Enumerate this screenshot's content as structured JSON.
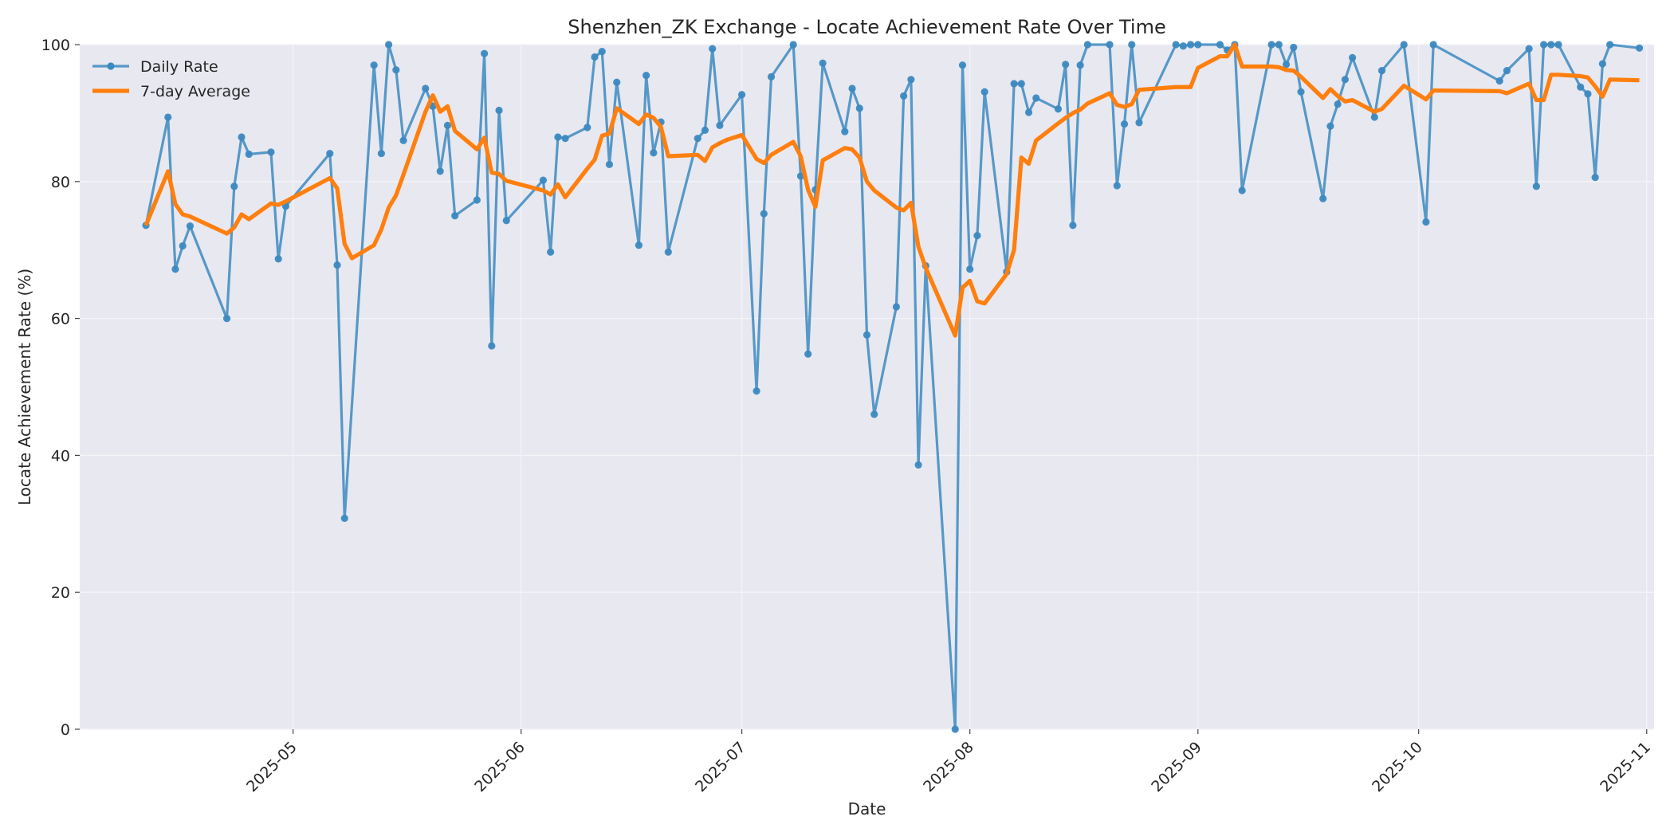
{
  "chart_data": {
    "type": "line",
    "title": "Shenzhen_ZK Exchange - Locate Achievement Rate Over Time",
    "xlabel": "Date",
    "ylabel": "Locate Achievement Rate (%)",
    "x_range": [
      "2025-04-02",
      "2025-11-02"
    ],
    "ylim": [
      0,
      100
    ],
    "yticks": [
      0,
      20,
      40,
      60,
      80,
      100
    ],
    "xticks": [
      {
        "date": "2025-05-01",
        "label": "2025-05"
      },
      {
        "date": "2025-06-01",
        "label": "2025-06"
      },
      {
        "date": "2025-07-01",
        "label": "2025-07"
      },
      {
        "date": "2025-08-01",
        "label": "2025-08"
      },
      {
        "date": "2025-09-01",
        "label": "2025-09"
      },
      {
        "date": "2025-10-01",
        "label": "2025-10"
      },
      {
        "date": "2025-11-01",
        "label": "2025-11"
      }
    ],
    "grid": true,
    "legend_position": "top-left",
    "colors": {
      "daily": "#3c89c0",
      "avg": "#ff7f0e",
      "plot_bg": "#e8e8f1",
      "grid": "#f3f3f8"
    },
    "series": [
      {
        "name": "Daily Rate",
        "style": "line-markers",
        "points": [
          [
            "2025-04-11",
            73.6
          ],
          [
            "2025-04-14",
            89.4
          ],
          [
            "2025-04-15",
            67.2
          ],
          [
            "2025-04-16",
            70.6
          ],
          [
            "2025-04-17",
            73.5
          ],
          [
            "2025-04-22",
            60.0
          ],
          [
            "2025-04-23",
            79.3
          ],
          [
            "2025-04-24",
            86.5
          ],
          [
            "2025-04-25",
            84.0
          ],
          [
            "2025-04-28",
            84.3
          ],
          [
            "2025-04-29",
            68.7
          ],
          [
            "2025-04-30",
            76.4
          ],
          [
            "2025-05-06",
            84.1
          ],
          [
            "2025-05-07",
            67.8
          ],
          [
            "2025-05-08",
            30.8
          ],
          [
            "2025-05-12",
            97.0
          ],
          [
            "2025-05-13",
            84.1
          ],
          [
            "2025-05-14",
            100.0
          ],
          [
            "2025-05-15",
            96.3
          ],
          [
            "2025-05-16",
            86.0
          ],
          [
            "2025-05-19",
            93.6
          ],
          [
            "2025-05-20",
            91.0
          ],
          [
            "2025-05-21",
            81.5
          ],
          [
            "2025-05-22",
            88.2
          ],
          [
            "2025-05-23",
            75.0
          ],
          [
            "2025-05-26",
            77.3
          ],
          [
            "2025-05-27",
            98.7
          ],
          [
            "2025-05-28",
            56.0
          ],
          [
            "2025-05-29",
            90.4
          ],
          [
            "2025-05-30",
            74.3
          ],
          [
            "2025-06-04",
            80.2
          ],
          [
            "2025-06-05",
            69.7
          ],
          [
            "2025-06-06",
            86.5
          ],
          [
            "2025-06-07",
            86.3
          ],
          [
            "2025-06-10",
            87.9
          ],
          [
            "2025-06-11",
            98.2
          ],
          [
            "2025-06-12",
            99.0
          ],
          [
            "2025-06-13",
            82.5
          ],
          [
            "2025-06-14",
            94.5
          ],
          [
            "2025-06-17",
            70.7
          ],
          [
            "2025-06-18",
            95.5
          ],
          [
            "2025-06-19",
            84.2
          ],
          [
            "2025-06-20",
            88.7
          ],
          [
            "2025-06-21",
            69.7
          ],
          [
            "2025-06-25",
            86.3
          ],
          [
            "2025-06-26",
            87.5
          ],
          [
            "2025-06-27",
            99.4
          ],
          [
            "2025-06-28",
            88.2
          ],
          [
            "2025-07-01",
            92.7
          ],
          [
            "2025-07-03",
            49.4
          ],
          [
            "2025-07-04",
            75.3
          ],
          [
            "2025-07-05",
            95.3
          ],
          [
            "2025-07-08",
            100.0
          ],
          [
            "2025-07-09",
            80.8
          ],
          [
            "2025-07-10",
            54.8
          ],
          [
            "2025-07-11",
            78.8
          ],
          [
            "2025-07-12",
            97.3
          ],
          [
            "2025-07-15",
            87.3
          ],
          [
            "2025-07-16",
            93.6
          ],
          [
            "2025-07-17",
            90.7
          ],
          [
            "2025-07-18",
            57.6
          ],
          [
            "2025-07-19",
            46.0
          ],
          [
            "2025-07-22",
            61.7
          ],
          [
            "2025-07-23",
            92.5
          ],
          [
            "2025-07-24",
            94.9
          ],
          [
            "2025-07-25",
            38.6
          ],
          [
            "2025-07-26",
            67.7
          ],
          [
            "2025-07-30",
            0.0
          ],
          [
            "2025-07-31",
            97.0
          ],
          [
            "2025-08-01",
            67.2
          ],
          [
            "2025-08-02",
            72.1
          ],
          [
            "2025-08-03",
            93.1
          ],
          [
            "2025-08-06",
            66.8
          ],
          [
            "2025-08-07",
            94.3
          ],
          [
            "2025-08-08",
            94.3
          ],
          [
            "2025-08-09",
            90.1
          ],
          [
            "2025-08-10",
            92.2
          ],
          [
            "2025-08-13",
            90.6
          ],
          [
            "2025-08-14",
            97.1
          ],
          [
            "2025-08-15",
            73.6
          ],
          [
            "2025-08-16",
            97.0
          ],
          [
            "2025-08-17",
            100.0
          ],
          [
            "2025-08-20",
            100.0
          ],
          [
            "2025-08-21",
            79.4
          ],
          [
            "2025-08-22",
            88.4
          ],
          [
            "2025-08-23",
            100.0
          ],
          [
            "2025-08-24",
            88.6
          ],
          [
            "2025-08-29",
            100.0
          ],
          [
            "2025-08-30",
            99.8
          ],
          [
            "2025-08-31",
            100.0
          ],
          [
            "2025-09-01",
            100.0
          ],
          [
            "2025-09-04",
            100.0
          ],
          [
            "2025-09-05",
            99.2
          ],
          [
            "2025-09-06",
            100.0
          ],
          [
            "2025-09-07",
            78.7
          ],
          [
            "2025-09-11",
            100.0
          ],
          [
            "2025-09-12",
            100.0
          ],
          [
            "2025-09-13",
            97.1
          ],
          [
            "2025-09-14",
            99.6
          ],
          [
            "2025-09-15",
            93.1
          ],
          [
            "2025-09-18",
            77.5
          ],
          [
            "2025-09-19",
            88.1
          ],
          [
            "2025-09-20",
            91.3
          ],
          [
            "2025-09-21",
            94.9
          ],
          [
            "2025-09-22",
            98.1
          ],
          [
            "2025-09-25",
            89.4
          ],
          [
            "2025-09-26",
            96.2
          ],
          [
            "2025-09-29",
            100.0
          ],
          [
            "2025-10-02",
            74.1
          ],
          [
            "2025-10-03",
            100.0
          ],
          [
            "2025-10-12",
            94.7
          ],
          [
            "2025-10-13",
            96.2
          ],
          [
            "2025-10-16",
            99.4
          ],
          [
            "2025-10-17",
            79.3
          ],
          [
            "2025-10-18",
            100.0
          ],
          [
            "2025-10-19",
            100.0
          ],
          [
            "2025-10-20",
            100.0
          ],
          [
            "2025-10-23",
            93.8
          ],
          [
            "2025-10-24",
            92.8
          ],
          [
            "2025-10-25",
            80.6
          ],
          [
            "2025-10-26",
            97.2
          ],
          [
            "2025-10-27",
            100.0
          ],
          [
            "2025-10-31",
            99.5
          ]
        ]
      },
      {
        "name": "7-day Average",
        "style": "line",
        "points": [
          [
            "2025-04-11",
            73.6
          ],
          [
            "2025-04-14",
            81.5
          ],
          [
            "2025-04-15",
            76.7
          ],
          [
            "2025-04-16",
            75.2
          ],
          [
            "2025-04-17",
            74.9
          ],
          [
            "2025-04-22",
            72.4
          ],
          [
            "2025-04-23",
            73.3
          ],
          [
            "2025-04-24",
            75.2
          ],
          [
            "2025-04-25",
            74.5
          ],
          [
            "2025-04-28",
            76.8
          ],
          [
            "2025-04-29",
            76.6
          ],
          [
            "2025-04-30",
            77.1
          ],
          [
            "2025-05-06",
            80.5
          ],
          [
            "2025-05-07",
            79.0
          ],
          [
            "2025-05-08",
            70.9
          ],
          [
            "2025-05-09",
            68.8
          ],
          [
            "2025-05-12",
            70.7
          ],
          [
            "2025-05-13",
            73.0
          ],
          [
            "2025-05-14",
            76.2
          ],
          [
            "2025-05-15",
            78.0
          ],
          [
            "2025-05-16",
            81.0
          ],
          [
            "2025-05-19",
            90.2
          ],
          [
            "2025-05-20",
            92.6
          ],
          [
            "2025-05-21",
            90.2
          ],
          [
            "2025-05-22",
            91.0
          ],
          [
            "2025-05-23",
            87.4
          ],
          [
            "2025-05-26",
            84.7
          ],
          [
            "2025-05-27",
            86.4
          ],
          [
            "2025-05-28",
            81.3
          ],
          [
            "2025-05-29",
            81.1
          ],
          [
            "2025-05-30",
            80.1
          ],
          [
            "2025-06-04",
            78.7
          ],
          [
            "2025-06-05",
            78.1
          ],
          [
            "2025-06-06",
            79.6
          ],
          [
            "2025-06-07",
            77.7
          ],
          [
            "2025-06-10",
            81.9
          ],
          [
            "2025-06-11",
            83.2
          ],
          [
            "2025-06-12",
            86.7
          ],
          [
            "2025-06-13",
            87.0
          ],
          [
            "2025-06-14",
            90.7
          ],
          [
            "2025-06-17",
            88.4
          ],
          [
            "2025-06-18",
            89.8
          ],
          [
            "2025-06-19",
            89.3
          ],
          [
            "2025-06-20",
            88.0
          ],
          [
            "2025-06-21",
            83.7
          ],
          [
            "2025-06-25",
            83.9
          ],
          [
            "2025-06-26",
            83.0
          ],
          [
            "2025-06-27",
            85.0
          ],
          [
            "2025-06-28",
            85.6
          ],
          [
            "2025-06-29",
            86.1
          ],
          [
            "2025-07-01",
            86.8
          ],
          [
            "2025-07-03",
            83.3
          ],
          [
            "2025-07-04",
            82.7
          ],
          [
            "2025-07-05",
            83.9
          ],
          [
            "2025-07-08",
            85.8
          ],
          [
            "2025-07-09",
            83.7
          ],
          [
            "2025-07-10",
            78.8
          ],
          [
            "2025-07-11",
            76.3
          ],
          [
            "2025-07-12",
            83.1
          ],
          [
            "2025-07-15",
            84.9
          ],
          [
            "2025-07-16",
            84.7
          ],
          [
            "2025-07-17",
            83.5
          ],
          [
            "2025-07-18",
            80.0
          ],
          [
            "2025-07-19",
            78.7
          ],
          [
            "2025-07-22",
            76.2
          ],
          [
            "2025-07-23",
            75.8
          ],
          [
            "2025-07-24",
            76.9
          ],
          [
            "2025-07-25",
            70.5
          ],
          [
            "2025-07-26",
            67.4
          ],
          [
            "2025-07-30",
            57.5
          ],
          [
            "2025-07-31",
            64.5
          ],
          [
            "2025-08-01",
            65.5
          ],
          [
            "2025-08-02",
            62.5
          ],
          [
            "2025-08-03",
            62.2
          ],
          [
            "2025-08-06",
            66.5
          ],
          [
            "2025-08-07",
            70.0
          ],
          [
            "2025-08-08",
            83.5
          ],
          [
            "2025-08-09",
            82.6
          ],
          [
            "2025-08-10",
            86.0
          ],
          [
            "2025-08-13",
            88.5
          ],
          [
            "2025-08-14",
            89.3
          ],
          [
            "2025-08-15",
            90.0
          ],
          [
            "2025-08-16",
            90.5
          ],
          [
            "2025-08-17",
            91.4
          ],
          [
            "2025-08-20",
            92.9
          ],
          [
            "2025-08-21",
            91.2
          ],
          [
            "2025-08-22",
            90.9
          ],
          [
            "2025-08-23",
            91.3
          ],
          [
            "2025-08-24",
            93.4
          ],
          [
            "2025-08-29",
            93.8
          ],
          [
            "2025-08-30",
            93.8
          ],
          [
            "2025-08-31",
            93.8
          ],
          [
            "2025-09-01",
            96.6
          ],
          [
            "2025-09-04",
            98.3
          ],
          [
            "2025-09-05",
            98.3
          ],
          [
            "2025-09-06",
            100.0
          ],
          [
            "2025-09-07",
            96.8
          ],
          [
            "2025-09-11",
            96.8
          ],
          [
            "2025-09-12",
            96.7
          ],
          [
            "2025-09-13",
            96.3
          ],
          [
            "2025-09-14",
            96.2
          ],
          [
            "2025-09-15",
            95.3
          ],
          [
            "2025-09-18",
            92.2
          ],
          [
            "2025-09-19",
            93.5
          ],
          [
            "2025-09-20",
            92.5
          ],
          [
            "2025-09-21",
            91.7
          ],
          [
            "2025-09-22",
            91.9
          ],
          [
            "2025-09-25",
            90.2
          ],
          [
            "2025-09-26",
            90.6
          ],
          [
            "2025-09-29",
            94.0
          ],
          [
            "2025-10-02",
            92.0
          ],
          [
            "2025-10-03",
            93.3
          ],
          [
            "2025-10-12",
            93.2
          ],
          [
            "2025-10-13",
            92.9
          ],
          [
            "2025-10-16",
            94.3
          ],
          [
            "2025-10-17",
            91.9
          ],
          [
            "2025-10-18",
            91.9
          ],
          [
            "2025-10-19",
            95.6
          ],
          [
            "2025-10-20",
            95.6
          ],
          [
            "2025-10-23",
            95.4
          ],
          [
            "2025-10-24",
            95.2
          ],
          [
            "2025-10-25",
            93.9
          ],
          [
            "2025-10-26",
            92.4
          ],
          [
            "2025-10-27",
            94.9
          ],
          [
            "2025-10-31",
            94.8
          ]
        ]
      }
    ]
  }
}
